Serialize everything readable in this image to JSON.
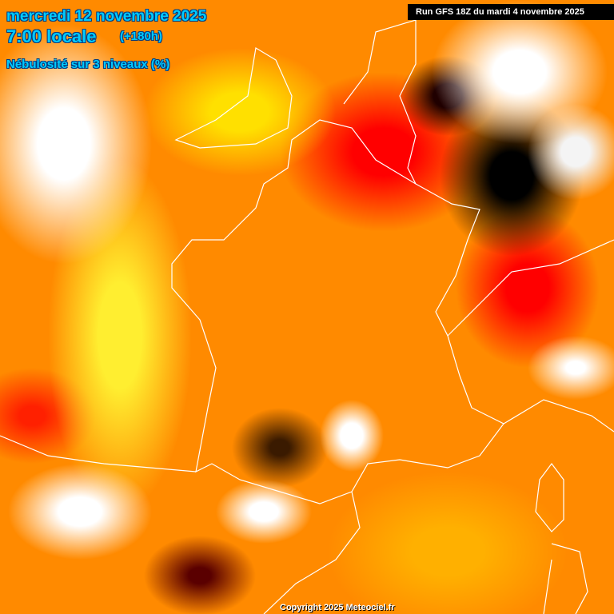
{
  "header": {
    "date": "mercredi 12 novembre 2025",
    "time": "7:00 locale",
    "lead": "(+180h)",
    "parameter": "Nébulosité sur 3 niveaux (%)"
  },
  "run_label": "Run GFS 18Z du mardi 4 novembre 2025",
  "copyright": "Copyright 2025 Meteociel.fr",
  "colors": {
    "title": "#00ccff",
    "clear": "#000000",
    "low": "#ff0000",
    "mid": "#ffa500",
    "high": "#ffff00",
    "overcast": "#ffffff"
  }
}
